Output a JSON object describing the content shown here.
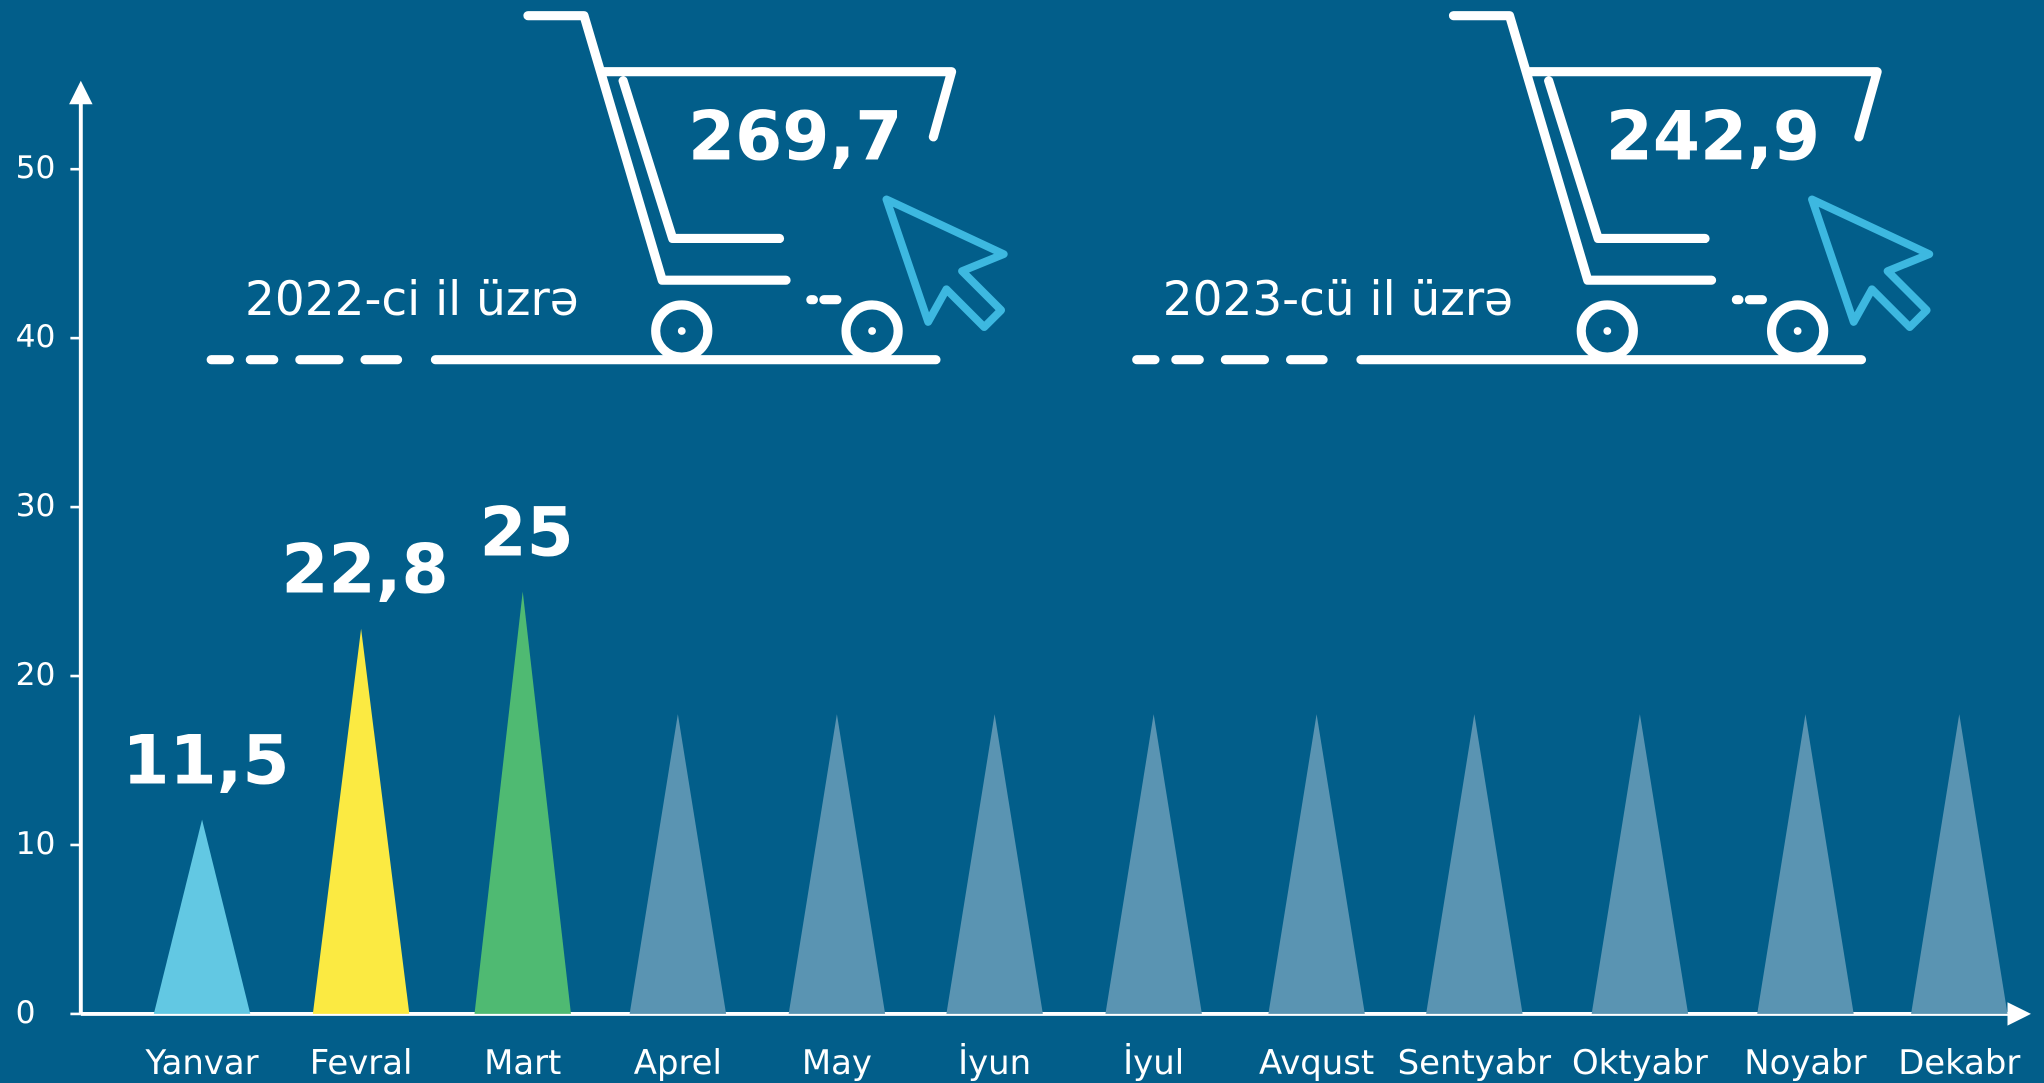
{
  "chart_data": {
    "type": "triangle-bar",
    "categories": [
      "Yanvar",
      "Fevral",
      "Mart",
      "Aprel",
      "May",
      "İyun",
      "İyul",
      "Avqust",
      "Sentyabr",
      "Oktyabr",
      "Noyabr",
      "Dekabr"
    ],
    "values": [
      11.5,
      22.8,
      25,
      null,
      null,
      null,
      null,
      null,
      null,
      null,
      null,
      null
    ],
    "value_labels": [
      "11,5",
      "22,8",
      "25",
      null,
      null,
      null,
      null,
      null,
      null,
      null,
      null,
      null
    ],
    "colors": [
      "#62c8e3",
      "#fbea42",
      "#4fba72",
      null,
      null,
      null,
      null,
      null,
      null,
      null,
      null,
      null
    ],
    "placeholder_color": "#5a94b2",
    "ylim": [
      0,
      55
    ],
    "yticks": [
      0,
      10,
      20,
      30,
      40,
      50
    ],
    "annotations": [
      {
        "text": "2022-ci il üzrə",
        "total": "269,7"
      },
      {
        "text": "2023-cü il üzrə",
        "total": "242,9"
      }
    ]
  }
}
